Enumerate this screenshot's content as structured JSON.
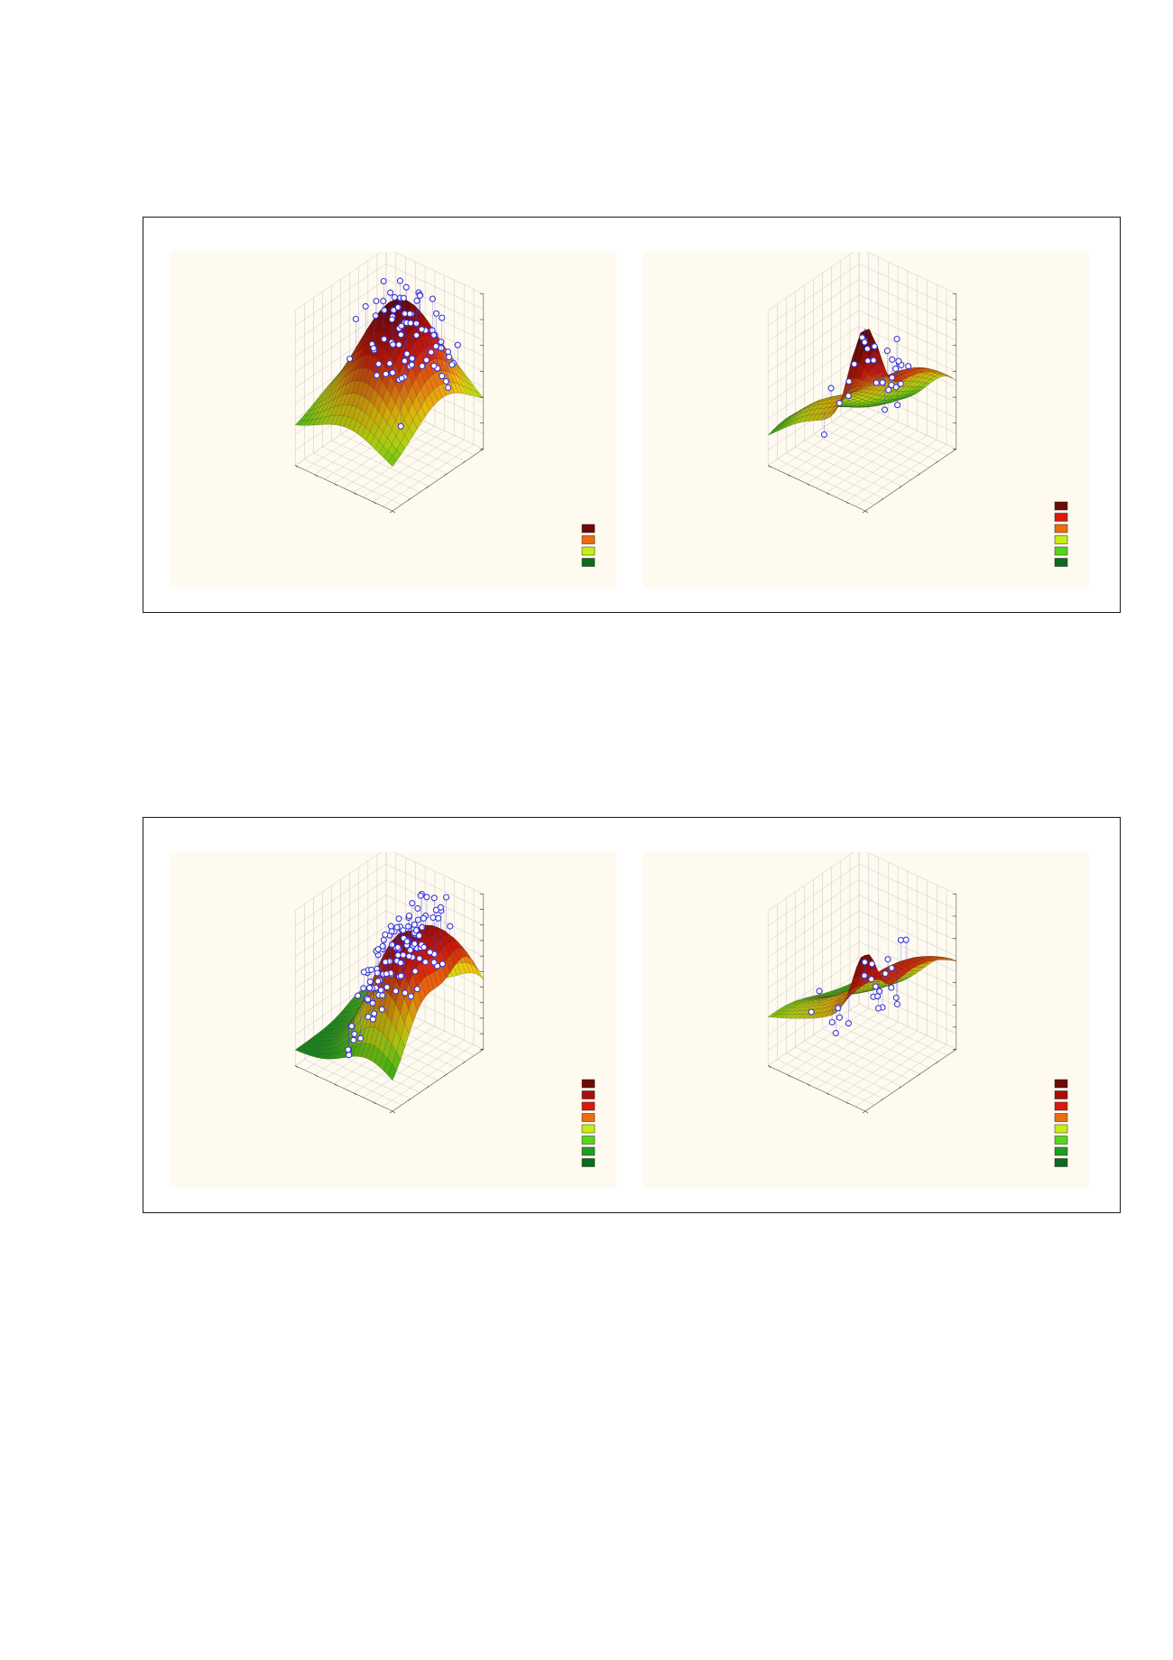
{
  "palette": {
    "surface_scale": [
      "#0b6b1c",
      "#1f9e23",
      "#56d61a",
      "#c9ee14",
      "#f3c70d",
      "#ec6d10",
      "#d81a0c",
      "#a80f08",
      "#6e0a05"
    ],
    "point_fill": "#ffffff",
    "point_stroke": "#3a36d8",
    "panel_bg": "#fefaef",
    "grid": "#c9c9c9"
  },
  "chart_data": [
    {
      "type": "surface",
      "position": "top-left",
      "title": "",
      "surface": "ridge",
      "legend_levels": 4,
      "points": 80,
      "x_ticks": [
        "",
        "",
        "",
        "",
        "",
        ""
      ],
      "y_ticks": [
        "",
        "",
        "",
        "",
        "",
        ""
      ],
      "z_ticks": [
        "",
        "",
        "",
        "",
        "",
        "",
        ""
      ],
      "xlabel": "",
      "ylabel": "",
      "zlabel": ""
    },
    {
      "type": "surface",
      "position": "top-right",
      "title": "",
      "surface": "peak-back",
      "legend_levels": 6,
      "points": 30,
      "x_ticks": [
        "",
        "",
        "",
        "",
        "",
        ""
      ],
      "y_ticks": [
        "",
        "",
        "",
        "",
        "",
        ""
      ],
      "z_ticks": [
        "",
        "",
        "",
        "",
        "",
        "",
        ""
      ],
      "xlabel": "",
      "ylabel": "",
      "zlabel": ""
    },
    {
      "type": "surface",
      "position": "bottom-left",
      "title": "",
      "surface": "double-ridge",
      "legend_levels": 8,
      "points": 120,
      "x_ticks": [
        "",
        "",
        "",
        "",
        "",
        ""
      ],
      "y_ticks": [
        "",
        "",
        "",
        "",
        "",
        ""
      ],
      "z_ticks": [
        "",
        "",
        "",
        "",
        "",
        "",
        "",
        "",
        "",
        "",
        ""
      ],
      "xlabel": "",
      "ylabel": "",
      "zlabel": ""
    },
    {
      "type": "surface",
      "position": "bottom-right",
      "title": "",
      "surface": "peak-back-2",
      "legend_levels": 8,
      "points": 25,
      "x_ticks": [
        "",
        "",
        "",
        "",
        "",
        ""
      ],
      "y_ticks": [
        "",
        "",
        "",
        "",
        "",
        ""
      ],
      "z_ticks": [
        "",
        "",
        "",
        "",
        "",
        "",
        "",
        ""
      ],
      "xlabel": "",
      "ylabel": "",
      "zlabel": ""
    }
  ]
}
